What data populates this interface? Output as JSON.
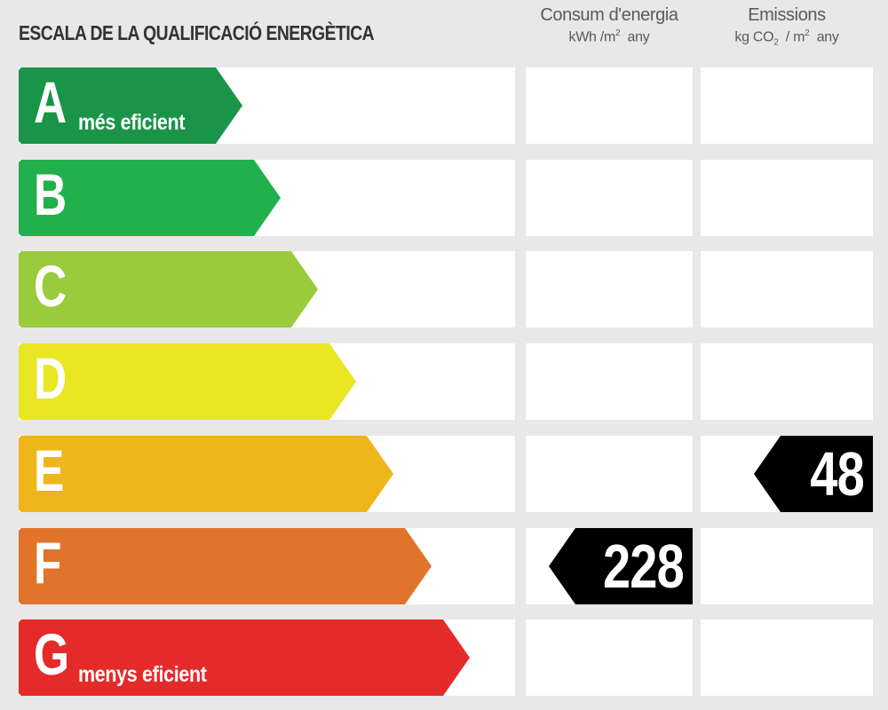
{
  "title": "ESCALA DE LA QUALIFICACIÓ ENERGÈTICA",
  "columns": {
    "consum": {
      "title": "Consum d'energia",
      "unit_pre": "kWh /m",
      "unit_sup": "2",
      "unit_post": "  any"
    },
    "emissions": {
      "title": "Emissions",
      "unit_pre": "kg CO",
      "unit_sub": "2",
      "unit_mid": "  / m",
      "unit_sup": "2",
      "unit_post": "  any"
    }
  },
  "classes": [
    {
      "letter": "A",
      "label": "més eficient",
      "color": "#1a9448"
    },
    {
      "letter": "B",
      "label": "",
      "color": "#21b04b"
    },
    {
      "letter": "C",
      "label": "",
      "color": "#9acb3c"
    },
    {
      "letter": "D",
      "label": "",
      "color": "#e9e623"
    },
    {
      "letter": "E",
      "label": "",
      "color": "#efb61c"
    },
    {
      "letter": "F",
      "label": "",
      "color": "#e0742a"
    },
    {
      "letter": "G",
      "label": "menys eficient",
      "color": "#e52a2a"
    }
  ],
  "rating": {
    "consum": {
      "value": "228",
      "class": "F"
    },
    "emissions": {
      "value": "48",
      "class": "E"
    }
  }
}
